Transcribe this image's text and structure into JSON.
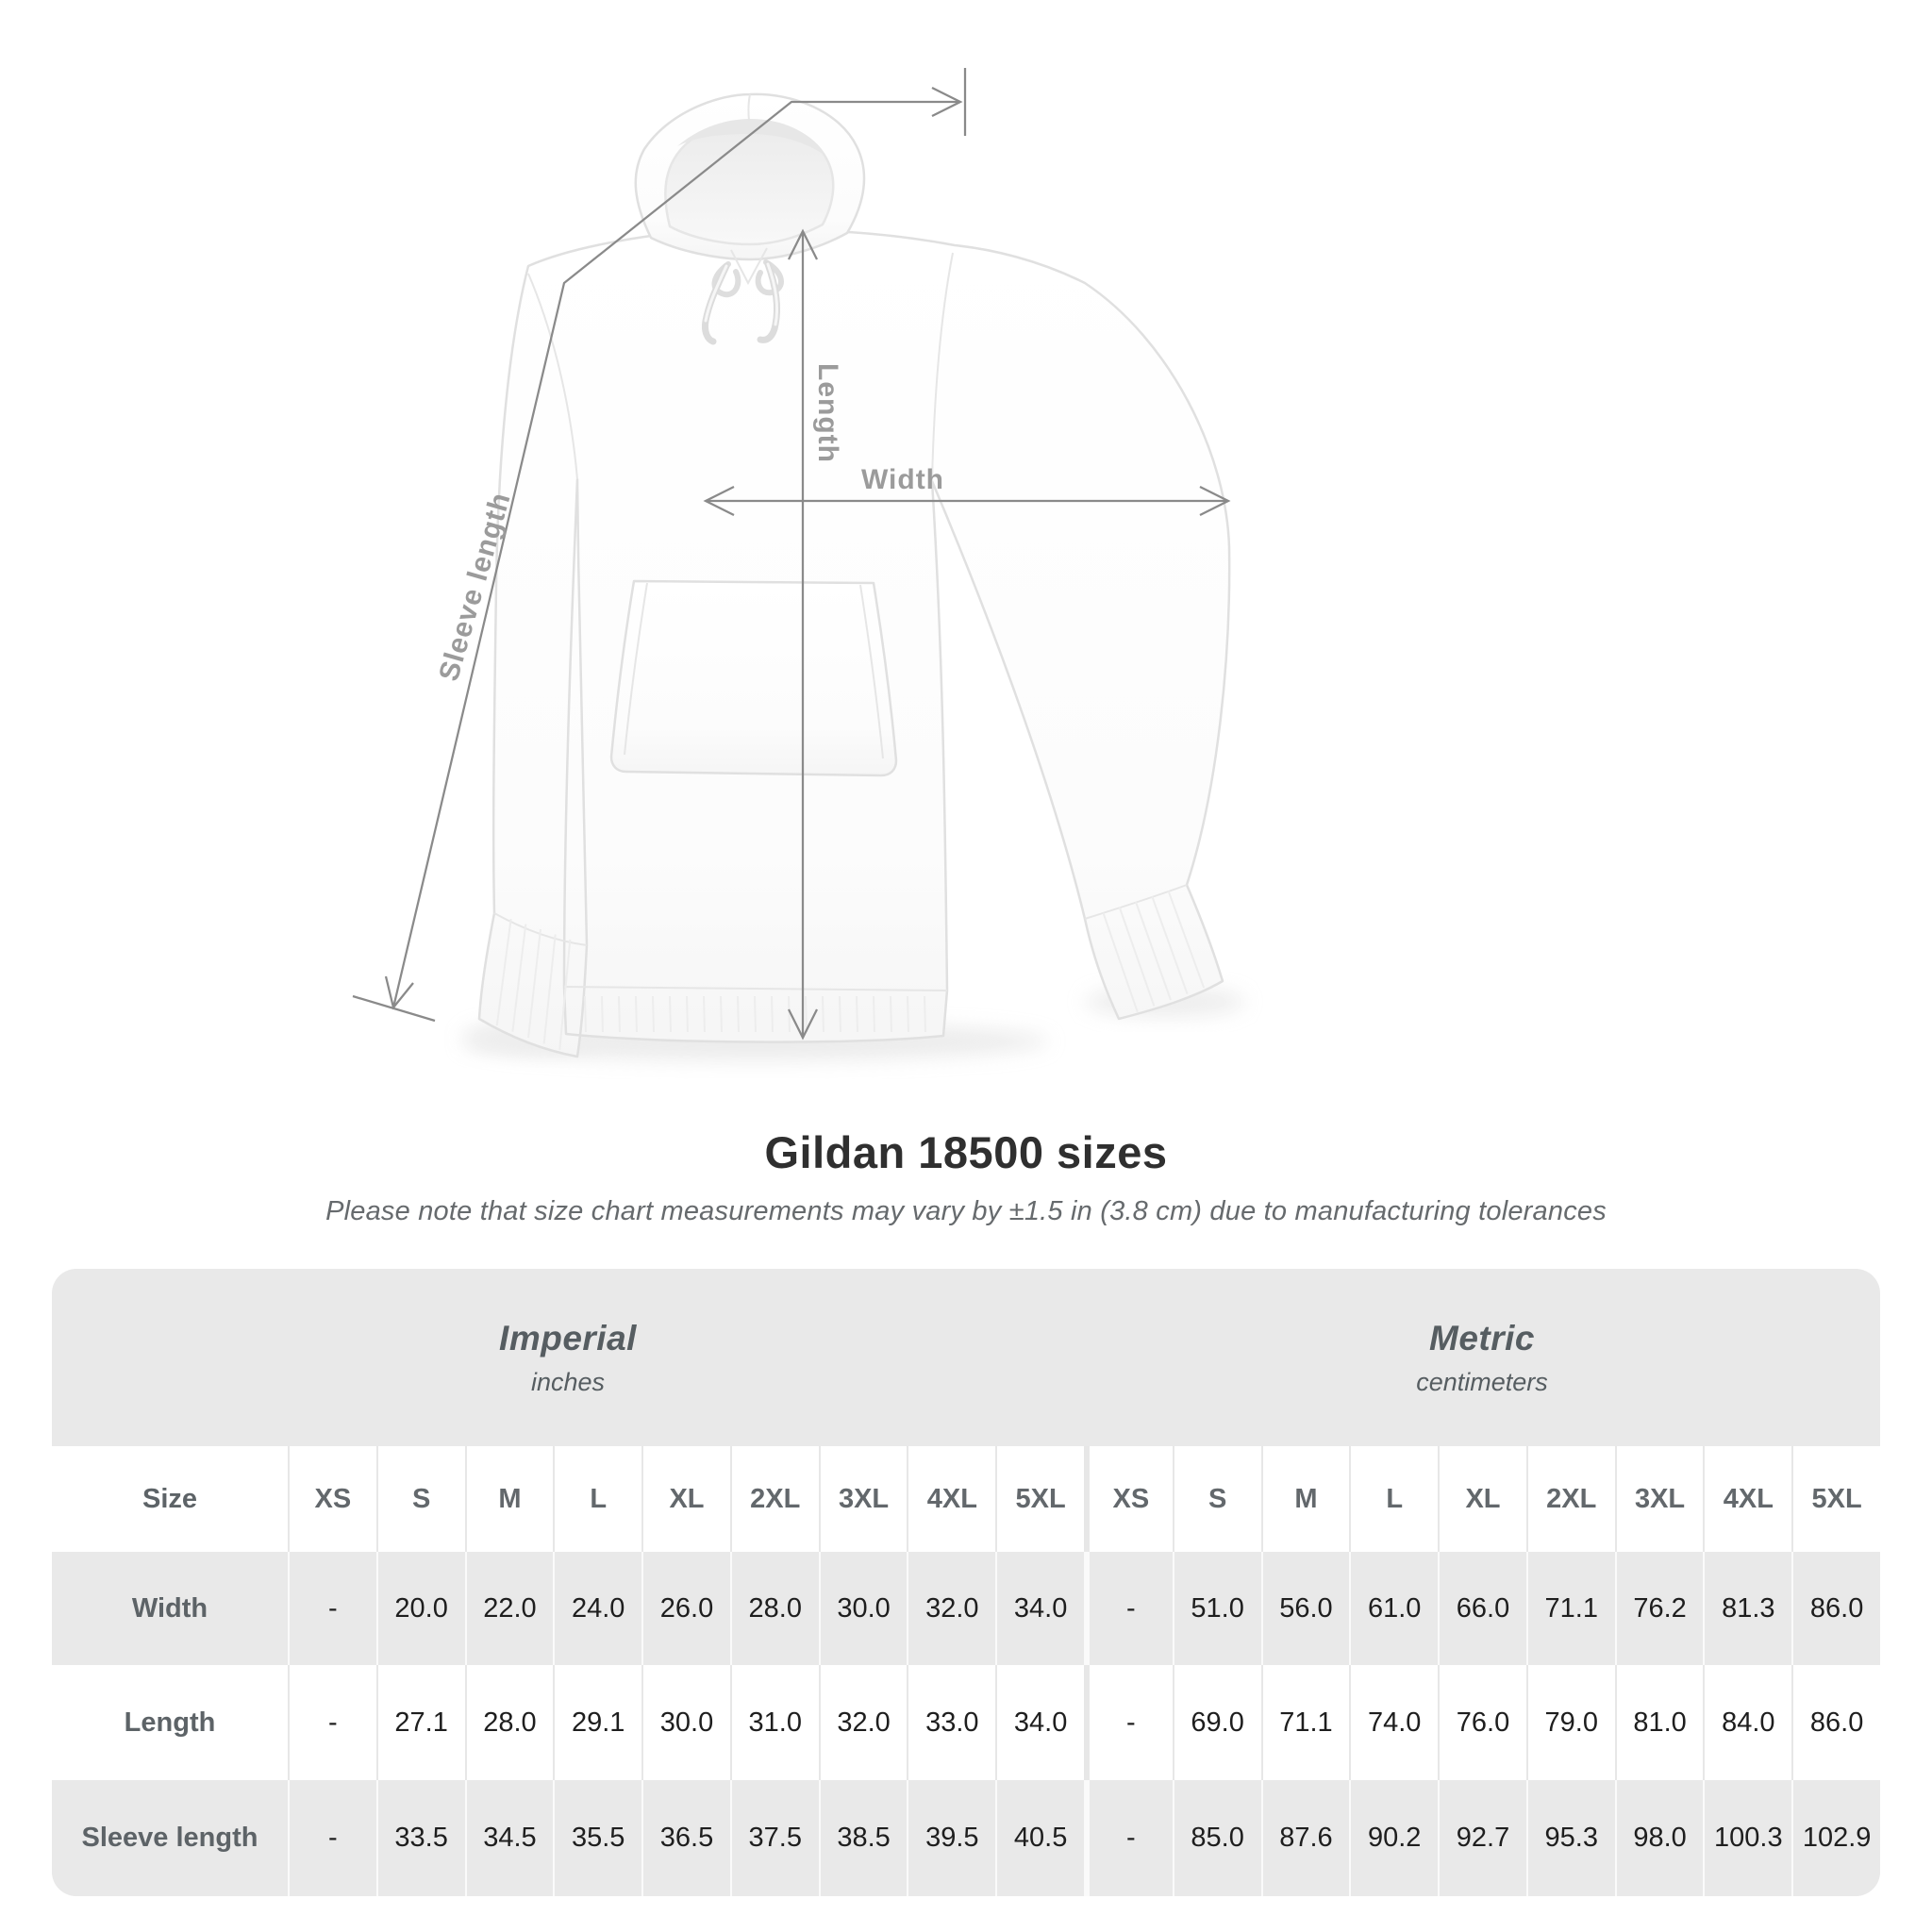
{
  "diagram": {
    "labels": {
      "sleeve": "Sleeve length",
      "length": "Length",
      "width": "Width"
    }
  },
  "title": "Gildan 18500 sizes",
  "subtitle": "Please note that size chart measurements may vary by ±1.5 in (3.8 cm) due to manufacturing tolerances",
  "table": {
    "imperial": {
      "title": "Imperial",
      "unit": "inches"
    },
    "metric": {
      "title": "Metric",
      "unit": "centimeters"
    },
    "size_column_label": "Size",
    "sizes": [
      "XS",
      "S",
      "M",
      "L",
      "XL",
      "2XL",
      "3XL",
      "4XL",
      "5XL"
    ],
    "rows": [
      {
        "label": "Width",
        "imperial": [
          "-",
          "20.0",
          "22.0",
          "24.0",
          "26.0",
          "28.0",
          "30.0",
          "32.0",
          "34.0"
        ],
        "metric": [
          "-",
          "51.0",
          "56.0",
          "61.0",
          "66.0",
          "71.1",
          "76.2",
          "81.3",
          "86.0"
        ]
      },
      {
        "label": "Length",
        "imperial": [
          "-",
          "27.1",
          "28.0",
          "29.1",
          "30.0",
          "31.0",
          "32.0",
          "33.0",
          "34.0"
        ],
        "metric": [
          "-",
          "69.0",
          "71.1",
          "74.0",
          "76.0",
          "79.0",
          "81.0",
          "84.0",
          "86.0"
        ]
      },
      {
        "label": "Sleeve length",
        "imperial": [
          "-",
          "33.5",
          "34.5",
          "35.5",
          "36.5",
          "37.5",
          "38.5",
          "39.5",
          "40.5"
        ],
        "metric": [
          "-",
          "85.0",
          "87.6",
          "90.2",
          "92.7",
          "95.3",
          "98.0",
          "100.3",
          "102.9"
        ]
      }
    ]
  },
  "chart_data": {
    "type": "table",
    "title": "Gildan 18500 sizes",
    "note": "Measurements may vary by ±1.5 in (3.8 cm)",
    "columns": [
      "XS",
      "S",
      "M",
      "L",
      "XL",
      "2XL",
      "3XL",
      "4XL",
      "5XL"
    ],
    "unit_systems": [
      "inches",
      "centimeters"
    ],
    "rows": [
      {
        "label": "Width",
        "inches": [
          null,
          20.0,
          22.0,
          24.0,
          26.0,
          28.0,
          30.0,
          32.0,
          34.0
        ],
        "centimeters": [
          null,
          51.0,
          56.0,
          61.0,
          66.0,
          71.1,
          76.2,
          81.3,
          86.0
        ]
      },
      {
        "label": "Length",
        "inches": [
          null,
          27.1,
          28.0,
          29.1,
          30.0,
          31.0,
          32.0,
          33.0,
          34.0
        ],
        "centimeters": [
          null,
          69.0,
          71.1,
          74.0,
          76.0,
          79.0,
          81.0,
          84.0,
          86.0
        ]
      },
      {
        "label": "Sleeve length",
        "inches": [
          null,
          33.5,
          34.5,
          35.5,
          36.5,
          37.5,
          38.5,
          39.5,
          40.5
        ],
        "centimeters": [
          null,
          85.0,
          87.6,
          90.2,
          92.7,
          95.3,
          98.0,
          100.3,
          102.9
        ]
      }
    ]
  },
  "colors": {
    "table_band": "#e9e9e9",
    "annotation_line": "#8a8a8a",
    "diagram_label": "#9b9b9b",
    "title_text": "#2f2f2f"
  }
}
